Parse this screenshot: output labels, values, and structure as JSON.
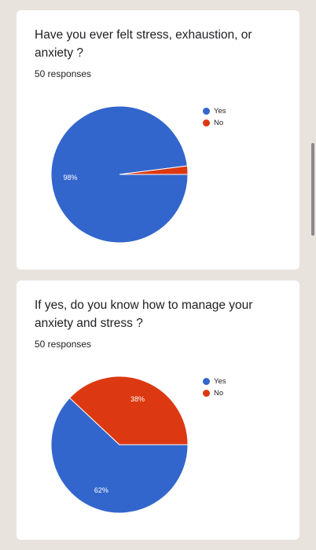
{
  "colors": {
    "yes": "#3366cc",
    "no": "#dc3912"
  },
  "cards": [
    {
      "question": "Have you ever felt stress, exhaustion, or anxiety ?",
      "responses": "50 responses",
      "legend": [
        {
          "label": "Yes",
          "color": "#3366cc"
        },
        {
          "label": "No",
          "color": "#dc3912"
        }
      ],
      "chart_data": {
        "type": "pie",
        "categories": [
          "Yes",
          "No"
        ],
        "values": [
          98,
          2
        ],
        "slice_labels": [
          "98%",
          ""
        ],
        "colors": [
          "#3366cc",
          "#dc3912"
        ]
      }
    },
    {
      "question": "If yes, do you know how to manage your anxiety and stress ?",
      "responses": "50 responses",
      "legend": [
        {
          "label": "Yes",
          "color": "#3366cc"
        },
        {
          "label": "No",
          "color": "#dc3912"
        }
      ],
      "chart_data": {
        "type": "pie",
        "categories": [
          "Yes",
          "No"
        ],
        "values": [
          62,
          38
        ],
        "slice_labels": [
          "62%",
          "38%"
        ],
        "colors": [
          "#3366cc",
          "#dc3912"
        ]
      }
    }
  ],
  "chart_data": [
    {
      "type": "pie",
      "title": "Have you ever felt stress, exhaustion, or anxiety ?",
      "categories": [
        "Yes",
        "No"
      ],
      "values": [
        98,
        2
      ]
    },
    {
      "type": "pie",
      "title": "If yes, do you know how to manage your anxiety and stress ?",
      "categories": [
        "Yes",
        "No"
      ],
      "values": [
        62,
        38
      ]
    }
  ]
}
